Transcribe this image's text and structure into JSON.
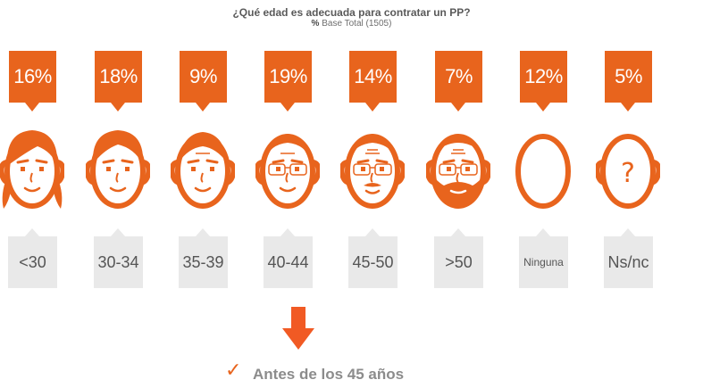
{
  "chart_data": {
    "type": "bar",
    "title": "¿Qué edad es adecuada para contratar un PP?",
    "subtitle_bold": "%",
    "subtitle": "Base Total (1505)",
    "categories": [
      "<30",
      "30-34",
      "35-39",
      "40-44",
      "45-50",
      ">50",
      "Ninguna",
      "Ns/nc"
    ],
    "values": [
      16,
      18,
      9,
      19,
      14,
      7,
      12,
      5
    ],
    "value_labels": [
      "16%",
      "18%",
      "9%",
      "19%",
      "14%",
      "7%",
      "12%",
      "5%"
    ],
    "unit": "%"
  },
  "conclusion": "Antes de los 45 años",
  "colors": {
    "accent": "#e8641d",
    "label_bg": "#e9e9e9",
    "text": "#555555"
  },
  "icons": [
    "down-arrow-icon",
    "checkmark-icon"
  ],
  "face_icons": [
    "face-young-icon",
    "face-30s-icon",
    "face-35s-icon",
    "face-40s-glasses-icon",
    "face-45s-mustache-icon",
    "face-50s-beard-icon",
    "face-blank-icon",
    "face-question-icon"
  ]
}
